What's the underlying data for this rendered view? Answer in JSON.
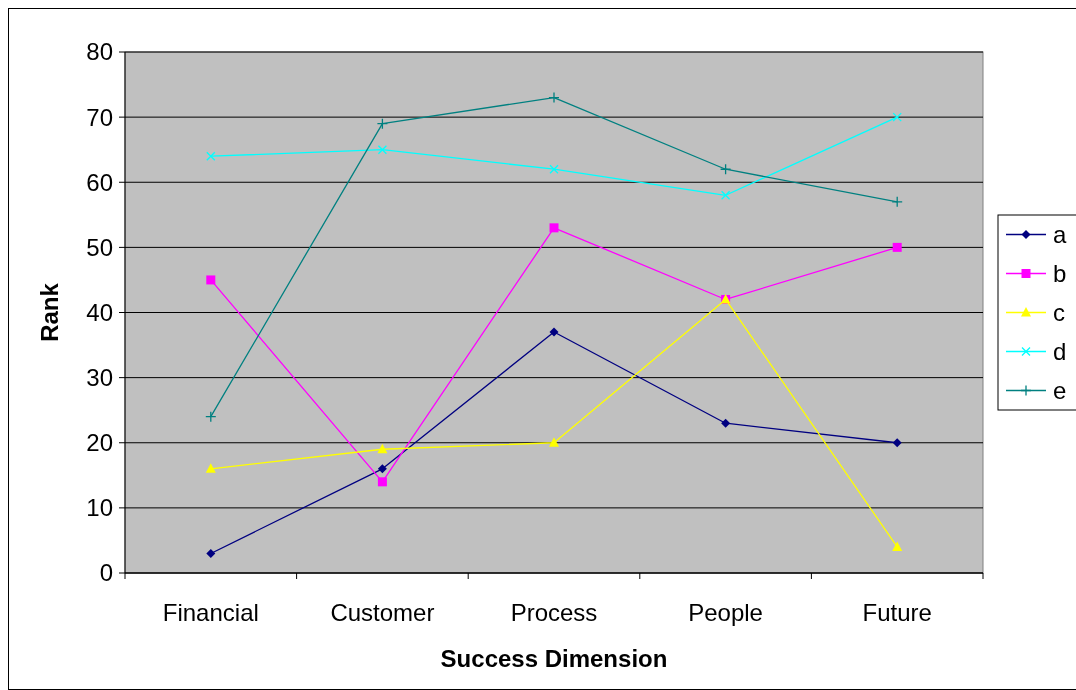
{
  "chart_data": {
    "type": "line",
    "xlabel": "Success Dimension",
    "ylabel": "Rank",
    "categories": [
      "Financial",
      "Customer",
      "Process",
      "People",
      "Future"
    ],
    "ylim": [
      0,
      80
    ],
    "yticks": [
      0,
      10,
      20,
      30,
      40,
      50,
      60,
      70,
      80
    ],
    "grid": "y",
    "legend": "right",
    "series": [
      {
        "name": "a",
        "color": "#000080",
        "marker": "diamond",
        "values": [
          3,
          16,
          37,
          23,
          20
        ]
      },
      {
        "name": "b",
        "color": "#ff00ff",
        "marker": "square",
        "values": [
          45,
          14,
          53,
          42,
          50
        ]
      },
      {
        "name": "c",
        "color": "#ffff00",
        "marker": "triangle",
        "values": [
          16,
          19,
          20,
          42,
          4
        ]
      },
      {
        "name": "d",
        "color": "#00ffff",
        "marker": "cross",
        "values": [
          64,
          65,
          62,
          58,
          70
        ]
      },
      {
        "name": "e",
        "color": "#008080",
        "marker": "plus",
        "values": [
          24,
          69,
          73,
          62,
          57
        ]
      }
    ]
  }
}
